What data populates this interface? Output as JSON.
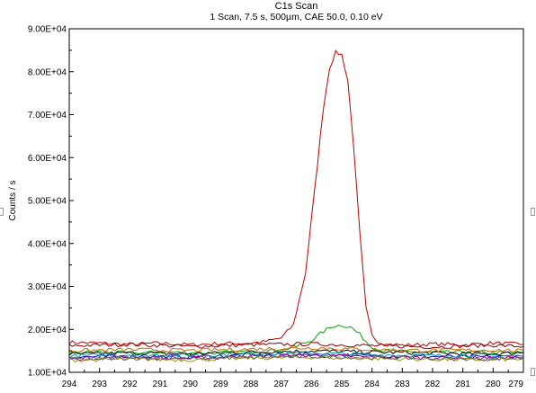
{
  "chart_data": {
    "type": "line",
    "title": "C1s Scan",
    "subtitle": "1 Scan,  7.5 s,  500µm,  CAE 50.0,  0.10 eV",
    "xlabel": "",
    "ylabel": "Counts / s",
    "xlim": [
      294,
      279
    ],
    "ylim": [
      10000,
      90000
    ],
    "x_reversed": true,
    "x_ticks": [
      "294",
      "293",
      "292",
      "291",
      "290",
      "289",
      "288",
      "287",
      "286",
      "285",
      "284",
      "283",
      "282",
      "281",
      "280",
      "279"
    ],
    "y_ticks": [
      "1.00E+04",
      "2.00E+04",
      "3.00E+04",
      "4.00E+04",
      "5.00E+04",
      "6.00E+04",
      "7.00E+04",
      "8.00E+04",
      "9.00E+04"
    ],
    "legend": "none",
    "grid": false,
    "series": [
      {
        "color": "#c00000",
        "x": [
          294,
          293,
          292,
          291,
          290,
          289,
          288,
          287.5,
          287,
          286.6,
          286.2,
          285.9,
          285.6,
          285.4,
          285.2,
          285.0,
          284.8,
          284.6,
          284.4,
          284.2,
          284.0,
          283.8,
          283.6,
          283.3,
          283,
          282,
          281,
          280,
          279
        ],
        "y": [
          17000,
          16800,
          16500,
          16800,
          16400,
          16700,
          16800,
          17200,
          18000,
          21000,
          33000,
          52000,
          72000,
          81000,
          84500,
          84000,
          78000,
          62000,
          42000,
          25000,
          18500,
          17200,
          16600,
          16500,
          16300,
          16600,
          16400,
          16800,
          16500
        ]
      },
      {
        "color": "#00aa00",
        "x": [
          294,
          293,
          292,
          291,
          290,
          289,
          288,
          287,
          286.5,
          286,
          285.6,
          285.3,
          285.0,
          284.7,
          284.4,
          284.1,
          283.8,
          283.5,
          283,
          282,
          281,
          280,
          279
        ],
        "y": [
          14500,
          14800,
          14400,
          14700,
          14600,
          14500,
          14900,
          15200,
          16000,
          17500,
          19500,
          20800,
          21000,
          20500,
          18800,
          16500,
          15300,
          15000,
          14800,
          14600,
          14700,
          14500,
          14600
        ]
      },
      {
        "color": "#8b0000",
        "x": [
          294,
          292,
          290,
          288,
          286,
          284,
          282,
          280,
          279
        ],
        "y": [
          16200,
          16500,
          16000,
          16400,
          16600,
          16200,
          15900,
          16300,
          16000
        ]
      },
      {
        "color": "#000000",
        "x": [
          294,
          292,
          290,
          288,
          286,
          284,
          282,
          280,
          279
        ],
        "y": [
          14200,
          14500,
          14300,
          14700,
          15000,
          14700,
          14500,
          14300,
          14600
        ]
      },
      {
        "color": "#0000cc",
        "x": [
          294,
          292,
          290,
          288,
          286,
          284,
          282,
          280,
          279
        ],
        "y": [
          13500,
          13800,
          13600,
          14000,
          14200,
          13900,
          13700,
          13600,
          13800
        ]
      },
      {
        "color": "#009999",
        "x": [
          294,
          292,
          290,
          288,
          286,
          284,
          282,
          280,
          279
        ],
        "y": [
          13800,
          14100,
          13900,
          14300,
          14500,
          14100,
          13900,
          14000,
          13800
        ]
      },
      {
        "color": "#990099",
        "x": [
          294,
          292,
          290,
          288,
          286,
          284,
          282,
          280,
          279
        ],
        "y": [
          13200,
          13500,
          13300,
          13700,
          13900,
          13600,
          13400,
          13300,
          13500
        ]
      },
      {
        "color": "#999900",
        "x": [
          294,
          292,
          290,
          288,
          286,
          284,
          282,
          280,
          279
        ],
        "y": [
          12800,
          13100,
          12900,
          13300,
          13500,
          13200,
          13000,
          12900,
          13100
        ]
      },
      {
        "color": "#666666",
        "x": [
          294,
          292,
          290,
          288,
          286,
          284,
          282,
          280,
          279
        ],
        "y": [
          13000,
          13300,
          13100,
          13500,
          13700,
          13400,
          13200,
          13100,
          13300
        ]
      },
      {
        "color": "#cc6600",
        "x": [
          294,
          292,
          290,
          288,
          286,
          284,
          282,
          280,
          279
        ],
        "y": [
          15000,
          15300,
          15100,
          15400,
          15700,
          15300,
          15100,
          15200,
          15000
        ]
      }
    ]
  }
}
